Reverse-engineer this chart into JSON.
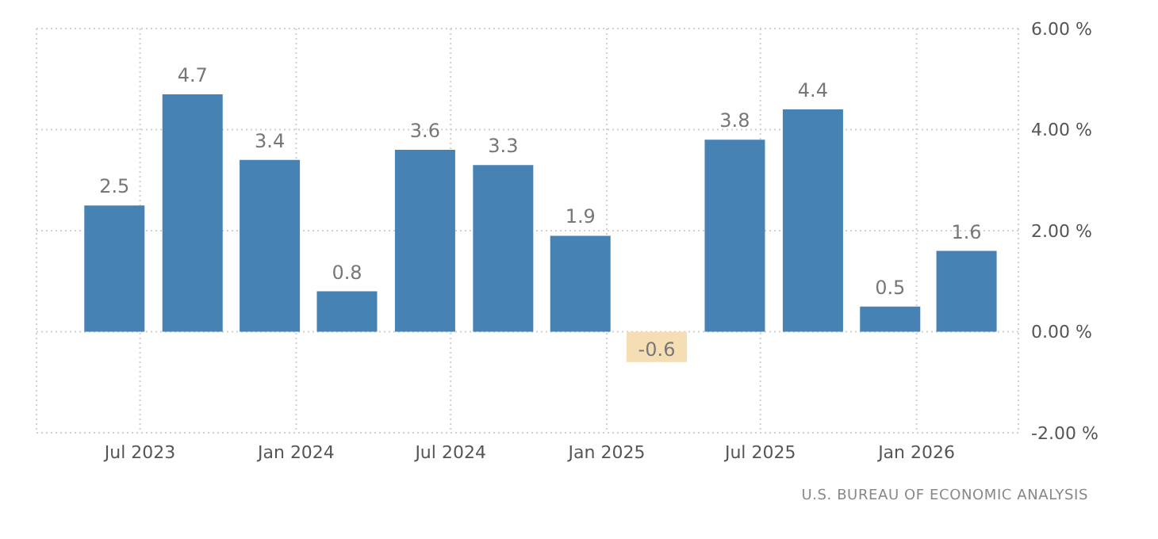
{
  "chart_data": {
    "type": "bar",
    "x": [
      "2023-06",
      "2023-09",
      "2023-12",
      "2024-03",
      "2024-06",
      "2024-09",
      "2024-12",
      "2025-03",
      "2025-06",
      "2025-09",
      "2025-12",
      "2026-03"
    ],
    "values": [
      2.5,
      4.7,
      3.4,
      0.8,
      3.6,
      3.3,
      1.9,
      -0.6,
      3.8,
      4.4,
      0.5,
      1.6
    ],
    "colors": [
      "#4682b4",
      "#4682b4",
      "#4682b4",
      "#4682b4",
      "#4682b4",
      "#4682b4",
      "#4682b4",
      "#f5deb3",
      "#4682b4",
      "#4682b4",
      "#4682b4",
      "#4682b4"
    ],
    "data_labels": true,
    "xlim": [
      "2023-03",
      "2026-05"
    ],
    "xticks": [
      {
        "value": "2023-07",
        "label": "Jul 2023"
      },
      {
        "value": "2024-01",
        "label": "Jan 2024"
      },
      {
        "value": "2024-07",
        "label": "Jul 2024"
      },
      {
        "value": "2025-01",
        "label": "Jan 2025"
      },
      {
        "value": "2025-07",
        "label": "Jul 2025"
      },
      {
        "value": "2026-01",
        "label": "Jan 2026"
      }
    ],
    "ylim": [
      -2,
      6
    ],
    "yticks": [
      {
        "value": -2,
        "label": "-2.00 %"
      },
      {
        "value": 0,
        "label": "0.00 %"
      },
      {
        "value": 2,
        "label": "2.00 %"
      },
      {
        "value": 4,
        "label": "4.00 %"
      },
      {
        "value": 6,
        "label": "6.00 %"
      }
    ],
    "grid": true,
    "annotations": [
      "U.S. BUREAU OF ECONOMIC ANALYSIS"
    ]
  }
}
